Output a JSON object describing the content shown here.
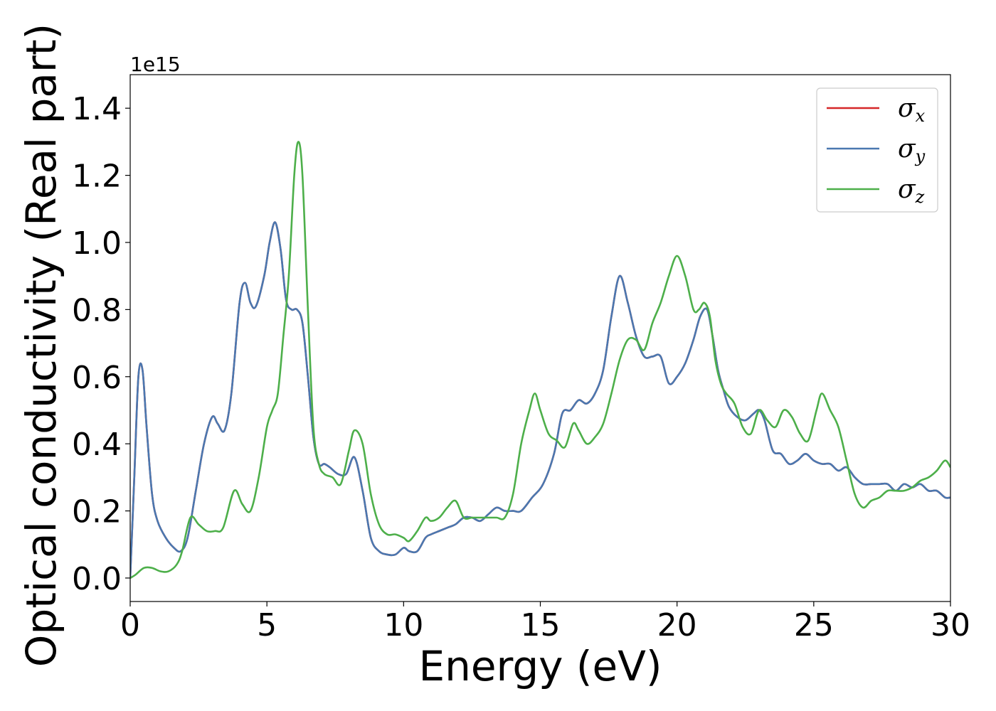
{
  "chart_data": {
    "type": "line",
    "xlabel": "Energy (eV)",
    "ylabel": "Optical conductivity (Real part)",
    "y_offset_label": "1e15",
    "xlim": [
      0,
      30
    ],
    "ylim": [
      -0.07,
      1.5
    ],
    "xticks": [
      0,
      5,
      10,
      15,
      20,
      25,
      30
    ],
    "xtick_labels": [
      "0",
      "5",
      "10",
      "15",
      "20",
      "25",
      "30"
    ],
    "yticks": [
      0.0,
      0.2,
      0.4,
      0.6,
      0.8,
      1.0,
      1.2,
      1.4
    ],
    "ytick_labels": [
      "0.0",
      "0.2",
      "0.4",
      "0.6",
      "0.8",
      "1.0",
      "1.2",
      "1.4"
    ],
    "grid": false,
    "legend_position": "top-right",
    "legend": [
      {
        "symbol": "σ",
        "subscript": "x",
        "color": "#d62728"
      },
      {
        "symbol": "σ",
        "subscript": "y",
        "color": "#4a78b0"
      },
      {
        "symbol": "σ",
        "subscript": "z",
        "color": "#4daf4a"
      }
    ],
    "series": [
      {
        "key": "sigma_xy",
        "color": "#4a78b0",
        "overlay_color": "#d62728",
        "x": [
          0,
          0.15,
          0.3,
          0.45,
          0.6,
          0.8,
          1.0,
          1.3,
          1.6,
          1.85,
          2.1,
          2.4,
          2.7,
          3.0,
          3.2,
          3.45,
          3.7,
          4.0,
          4.2,
          4.4,
          4.6,
          4.9,
          5.1,
          5.3,
          5.5,
          5.7,
          5.9,
          6.1,
          6.3,
          6.5,
          6.7,
          6.9,
          7.1,
          7.3,
          7.6,
          7.9,
          8.2,
          8.5,
          8.8,
          9.1,
          9.4,
          9.7,
          10.0,
          10.2,
          10.5,
          10.8,
          11.0,
          11.3,
          11.6,
          11.9,
          12.2,
          12.5,
          12.8,
          13.1,
          13.4,
          13.7,
          14.0,
          14.3,
          14.7,
          15.1,
          15.5,
          15.8,
          16.1,
          16.4,
          16.7,
          17.0,
          17.3,
          17.6,
          17.9,
          18.2,
          18.5,
          18.8,
          19.1,
          19.4,
          19.7,
          20.0,
          20.3,
          20.6,
          20.85,
          21.1,
          21.3,
          21.5,
          21.7,
          21.9,
          22.2,
          22.5,
          22.8,
          23.0,
          23.2,
          23.5,
          23.8,
          24.1,
          24.4,
          24.7,
          25.0,
          25.3,
          25.6,
          25.9,
          26.2,
          26.5,
          26.8,
          27.1,
          27.4,
          27.7,
          28.0,
          28.3,
          28.6,
          28.9,
          29.2,
          29.5,
          29.8,
          30.0
        ],
        "y": [
          0.0,
          0.3,
          0.6,
          0.62,
          0.45,
          0.25,
          0.17,
          0.12,
          0.09,
          0.08,
          0.12,
          0.26,
          0.4,
          0.48,
          0.46,
          0.44,
          0.55,
          0.82,
          0.88,
          0.82,
          0.81,
          0.9,
          1.0,
          1.06,
          0.98,
          0.83,
          0.8,
          0.8,
          0.76,
          0.6,
          0.42,
          0.34,
          0.34,
          0.33,
          0.31,
          0.31,
          0.36,
          0.26,
          0.12,
          0.08,
          0.07,
          0.07,
          0.09,
          0.08,
          0.08,
          0.12,
          0.13,
          0.14,
          0.15,
          0.16,
          0.18,
          0.18,
          0.17,
          0.19,
          0.21,
          0.2,
          0.2,
          0.2,
          0.24,
          0.28,
          0.37,
          0.49,
          0.5,
          0.53,
          0.52,
          0.55,
          0.62,
          0.78,
          0.9,
          0.82,
          0.72,
          0.66,
          0.66,
          0.66,
          0.58,
          0.6,
          0.64,
          0.71,
          0.78,
          0.8,
          0.72,
          0.62,
          0.56,
          0.51,
          0.48,
          0.47,
          0.49,
          0.5,
          0.47,
          0.38,
          0.37,
          0.34,
          0.35,
          0.37,
          0.35,
          0.34,
          0.34,
          0.32,
          0.33,
          0.3,
          0.28,
          0.28,
          0.28,
          0.28,
          0.26,
          0.28,
          0.27,
          0.28,
          0.26,
          0.26,
          0.24,
          0.24
        ]
      },
      {
        "key": "sigma_z",
        "color": "#4daf4a",
        "x": [
          0,
          0.2,
          0.5,
          0.8,
          1.1,
          1.4,
          1.7,
          1.9,
          2.2,
          2.5,
          2.8,
          3.1,
          3.4,
          3.8,
          4.1,
          4.4,
          4.7,
          5.0,
          5.2,
          5.4,
          5.6,
          5.8,
          6.0,
          6.15,
          6.3,
          6.5,
          6.7,
          6.9,
          7.1,
          7.4,
          7.7,
          8.0,
          8.2,
          8.5,
          8.8,
          9.1,
          9.4,
          9.7,
          10.0,
          10.2,
          10.5,
          10.8,
          11.0,
          11.3,
          11.6,
          11.9,
          12.2,
          12.5,
          12.8,
          13.1,
          13.4,
          13.7,
          14.0,
          14.3,
          14.6,
          14.8,
          15.0,
          15.3,
          15.6,
          15.9,
          16.2,
          16.4,
          16.7,
          17.0,
          17.3,
          17.6,
          17.9,
          18.2,
          18.5,
          18.8,
          19.1,
          19.4,
          19.7,
          20.0,
          20.3,
          20.6,
          20.8,
          21.0,
          21.2,
          21.4,
          21.6,
          21.8,
          22.1,
          22.4,
          22.7,
          23.0,
          23.3,
          23.6,
          23.9,
          24.2,
          24.5,
          24.8,
          25.1,
          25.3,
          25.6,
          25.9,
          26.2,
          26.5,
          26.8,
          27.1,
          27.4,
          27.7,
          28.0,
          28.3,
          28.6,
          28.9,
          29.2,
          29.5,
          29.8,
          30.0
        ],
        "y": [
          0.0,
          0.01,
          0.03,
          0.03,
          0.02,
          0.02,
          0.04,
          0.08,
          0.18,
          0.16,
          0.14,
          0.14,
          0.15,
          0.26,
          0.22,
          0.2,
          0.3,
          0.45,
          0.5,
          0.55,
          0.72,
          0.9,
          1.2,
          1.3,
          1.2,
          0.8,
          0.45,
          0.34,
          0.31,
          0.3,
          0.28,
          0.38,
          0.44,
          0.4,
          0.25,
          0.16,
          0.13,
          0.13,
          0.12,
          0.11,
          0.14,
          0.18,
          0.17,
          0.18,
          0.21,
          0.23,
          0.18,
          0.18,
          0.18,
          0.18,
          0.18,
          0.18,
          0.25,
          0.4,
          0.5,
          0.55,
          0.5,
          0.43,
          0.41,
          0.39,
          0.46,
          0.44,
          0.4,
          0.42,
          0.46,
          0.55,
          0.65,
          0.71,
          0.71,
          0.68,
          0.76,
          0.82,
          0.9,
          0.96,
          0.9,
          0.8,
          0.8,
          0.82,
          0.78,
          0.65,
          0.58,
          0.55,
          0.52,
          0.45,
          0.43,
          0.5,
          0.47,
          0.45,
          0.5,
          0.48,
          0.43,
          0.41,
          0.5,
          0.55,
          0.5,
          0.45,
          0.35,
          0.25,
          0.21,
          0.23,
          0.24,
          0.26,
          0.26,
          0.26,
          0.27,
          0.29,
          0.3,
          0.32,
          0.35,
          0.33
        ]
      }
    ]
  }
}
